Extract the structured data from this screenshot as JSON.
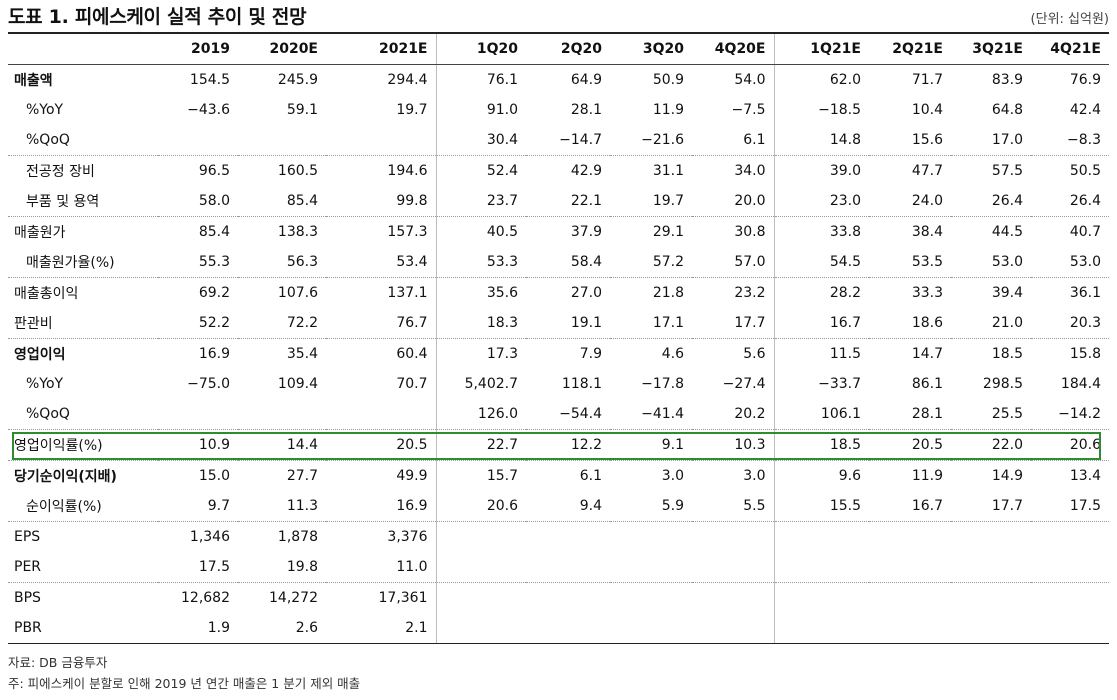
{
  "header": {
    "title": "도표 1. 피에스케이 실적 추이 및 전망",
    "unit": "(단위: 십억원)"
  },
  "table": {
    "columns": [
      "2019",
      "2020E",
      "2021E",
      "1Q20",
      "2Q20",
      "3Q20",
      "4Q20E",
      "1Q21E",
      "2Q21E",
      "3Q21E",
      "4Q21E"
    ],
    "rows": [
      {
        "label": "매출액",
        "values": [
          "154.5",
          "245.9",
          "294.4",
          "76.1",
          "64.9",
          "50.9",
          "54.0",
          "62.0",
          "71.7",
          "83.9",
          "76.9"
        ]
      },
      {
        "label": "%YoY",
        "values": [
          "−43.6",
          "59.1",
          "19.7",
          "91.0",
          "28.1",
          "11.9",
          "−7.5",
          "−18.5",
          "10.4",
          "64.8",
          "42.4"
        ]
      },
      {
        "label": "%QoQ",
        "values": [
          "",
          "",
          "",
          "30.4",
          "−14.7",
          "−21.6",
          "6.1",
          "14.8",
          "15.6",
          "17.0",
          "−8.3"
        ]
      },
      {
        "label": "전공정 장비",
        "values": [
          "96.5",
          "160.5",
          "194.6",
          "52.4",
          "42.9",
          "31.1",
          "34.0",
          "39.0",
          "47.7",
          "57.5",
          "50.5"
        ]
      },
      {
        "label": "부품 및 용역",
        "values": [
          "58.0",
          "85.4",
          "99.8",
          "23.7",
          "22.1",
          "19.7",
          "20.0",
          "23.0",
          "24.0",
          "26.4",
          "26.4"
        ]
      },
      {
        "label": "매출원가",
        "values": [
          "85.4",
          "138.3",
          "157.3",
          "40.5",
          "37.9",
          "29.1",
          "30.8",
          "33.8",
          "38.4",
          "44.5",
          "40.7"
        ]
      },
      {
        "label": "매출원가율(%)",
        "values": [
          "55.3",
          "56.3",
          "53.4",
          "53.3",
          "58.4",
          "57.2",
          "57.0",
          "54.5",
          "53.5",
          "53.0",
          "53.0"
        ]
      },
      {
        "label": "매출총이익",
        "values": [
          "69.2",
          "107.6",
          "137.1",
          "35.6",
          "27.0",
          "21.8",
          "23.2",
          "28.2",
          "33.3",
          "39.4",
          "36.1"
        ]
      },
      {
        "label": "판관비",
        "values": [
          "52.2",
          "72.2",
          "76.7",
          "18.3",
          "19.1",
          "17.1",
          "17.7",
          "16.7",
          "18.6",
          "21.0",
          "20.3"
        ]
      },
      {
        "label": "영업이익",
        "values": [
          "16.9",
          "35.4",
          "60.4",
          "17.3",
          "7.9",
          "4.6",
          "5.6",
          "11.5",
          "14.7",
          "18.5",
          "15.8"
        ]
      },
      {
        "label": "%YoY",
        "values": [
          "−75.0",
          "109.4",
          "70.7",
          "5,402.7",
          "118.1",
          "−17.8",
          "−27.4",
          "−33.7",
          "86.1",
          "298.5",
          "184.4"
        ]
      },
      {
        "label": "%QoQ",
        "values": [
          "",
          "",
          "",
          "126.0",
          "−54.4",
          "−41.4",
          "20.2",
          "106.1",
          "28.1",
          "25.5",
          "−14.2"
        ]
      },
      {
        "label": "영업이익률(%)",
        "values": [
          "10.9",
          "14.4",
          "20.5",
          "22.7",
          "12.2",
          "9.1",
          "10.3",
          "18.5",
          "20.5",
          "22.0",
          "20.6"
        ]
      },
      {
        "label": "당기순이익(지배)",
        "values": [
          "15.0",
          "27.7",
          "49.9",
          "15.7",
          "6.1",
          "3.0",
          "3.0",
          "9.6",
          "11.9",
          "14.9",
          "13.4"
        ]
      },
      {
        "label": "순이익률(%)",
        "values": [
          "9.7",
          "11.3",
          "16.9",
          "20.6",
          "9.4",
          "5.9",
          "5.5",
          "15.5",
          "16.7",
          "17.7",
          "17.5"
        ]
      },
      {
        "label": "EPS",
        "values": [
          "1,346",
          "1,878",
          "3,376",
          "",
          "",
          "",
          "",
          "",
          "",
          "",
          ""
        ]
      },
      {
        "label": "PER",
        "values": [
          "17.5",
          "19.8",
          "11.0",
          "",
          "",
          "",
          "",
          "",
          "",
          "",
          ""
        ]
      },
      {
        "label": "BPS",
        "values": [
          "12,682",
          "14,272",
          "17,361",
          "",
          "",
          "",
          "",
          "",
          "",
          "",
          ""
        ]
      },
      {
        "label": "PBR",
        "values": [
          "1.9",
          "2.6",
          "2.1",
          "",
          "",
          "",
          "",
          "",
          "",
          "",
          ""
        ]
      }
    ]
  },
  "highlight_color": "#2e8b2e",
  "footer": {
    "source": "자료: DB 금융투자",
    "note": "주: 피에스케이 분할로 인해 2019 년 연간 매출은 1 분기 제외 매출"
  }
}
